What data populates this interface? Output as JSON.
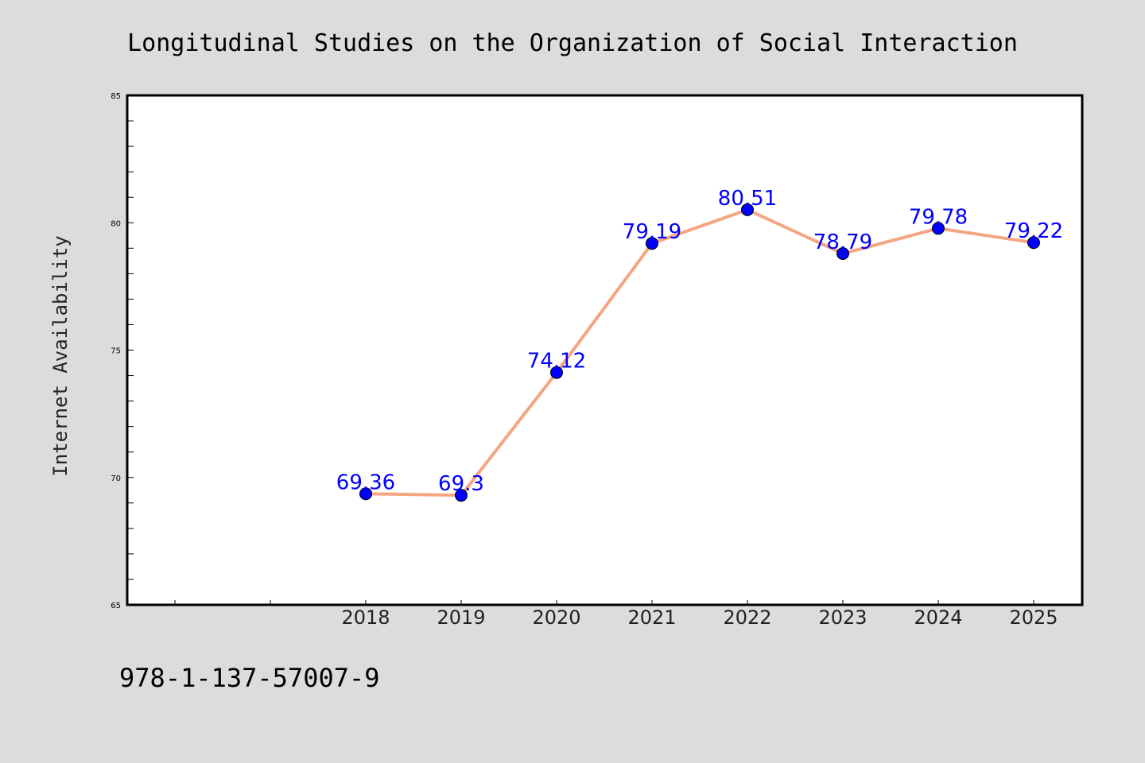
{
  "chart_data": {
    "type": "line",
    "title": "Longitudinal Studies on the Organization of Social Interaction",
    "ylabel": "Internet Availability",
    "xlabel": "",
    "categories": [
      "2018",
      "2019",
      "2020",
      "2021",
      "2022",
      "2023",
      "2024",
      "2025"
    ],
    "values": [
      69.36,
      69.3,
      74.12,
      79.19,
      80.51,
      78.79,
      79.78,
      79.22
    ],
    "data_labels": [
      "69.36",
      "69.3",
      "74.12",
      "79.19",
      "80.51",
      "78.79",
      "79.78",
      "79.22"
    ],
    "ylim": [
      65,
      85
    ],
    "yticks": [
      "65",
      "70",
      "75",
      "80",
      "85"
    ],
    "grid": false,
    "line_color": "#f4a582",
    "marker_color": "#0000ff",
    "label_color": "#0000ff",
    "background_color": "#dcdcdc",
    "plot_background_color": "#ffffff"
  },
  "footer": {
    "isbn": "978-1-137-57007-9"
  }
}
